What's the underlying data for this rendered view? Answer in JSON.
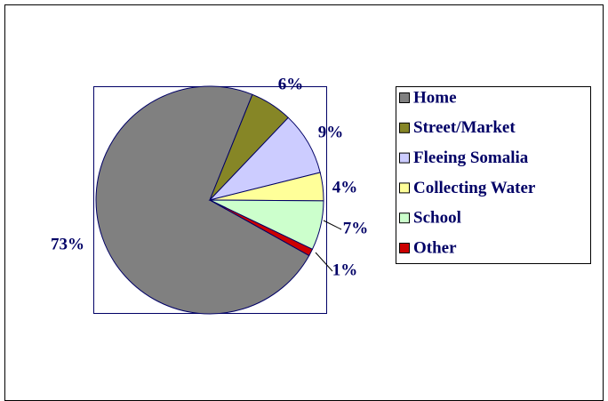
{
  "chart_data": {
    "type": "pie",
    "categories": [
      "Home",
      "Street/Market",
      "Fleeing Somalia",
      "Collecting Water",
      "School",
      "Other"
    ],
    "values": [
      73,
      6,
      9,
      4,
      7,
      1
    ],
    "value_labels": [
      "73%",
      "6%",
      "9%",
      "4%",
      "7%",
      "1%"
    ],
    "colors": [
      "#808080",
      "#868626",
      "#ccccff",
      "#ffff99",
      "#ccffcc",
      "#cc0000"
    ],
    "legend": "right"
  }
}
